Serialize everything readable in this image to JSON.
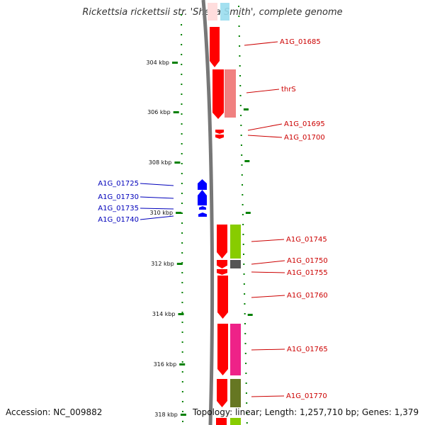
{
  "title": "Rickettsia rickettsii str. 'Sheila Smith', complete genome",
  "accession_label": "Accession: NC_009882",
  "summary_label": "Topology: linear; Length: 1,257,710 bp; Genes: 1,379",
  "scale": {
    "ticks": [
      "304 kbp",
      "306 kbp",
      "308 kbp",
      "310 kbp",
      "312 kbp",
      "314 kbp",
      "316 kbp",
      "318 kbp"
    ]
  },
  "genes_plus": [
    {
      "label": "A1G_01685",
      "color": "#ff0000"
    },
    {
      "label": "thrS",
      "color": "#ff0000"
    },
    {
      "label": "A1G_01695",
      "color": "#ff0000"
    },
    {
      "label": "A1G_01700",
      "color": "#ff0000"
    },
    {
      "label": "A1G_01745",
      "color": "#ff0000"
    },
    {
      "label": "A1G_01750",
      "color": "#ff0000"
    },
    {
      "label": "A1G_01755",
      "color": "#ff0000"
    },
    {
      "label": "A1G_01760",
      "color": "#ff0000"
    },
    {
      "label": "A1G_01765",
      "color": "#ff0000"
    },
    {
      "label": "A1G_01770",
      "color": "#ff0000"
    }
  ],
  "genes_minus": [
    {
      "label": "A1G_01725",
      "color": "#0000ff"
    },
    {
      "label": "A1G_01730",
      "color": "#0000ff"
    },
    {
      "label": "A1G_01735",
      "color": "#0000ff"
    },
    {
      "label": "A1G_01740",
      "color": "#0000ff"
    }
  ],
  "colors": {
    "gene_plus": "#ff0000",
    "gene_minus": "#0000ff",
    "label_plus": "#cc0000",
    "label_minus": "#0000bb",
    "backbone": "#777777",
    "scale_dots": "#008000",
    "cog_pink": "#f08080",
    "cog_cyan": "#99ddee",
    "cog_green": "#88cc00",
    "cog_grey": "#555555",
    "cog_magenta": "#ee2288",
    "cog_olive": "#667722"
  }
}
